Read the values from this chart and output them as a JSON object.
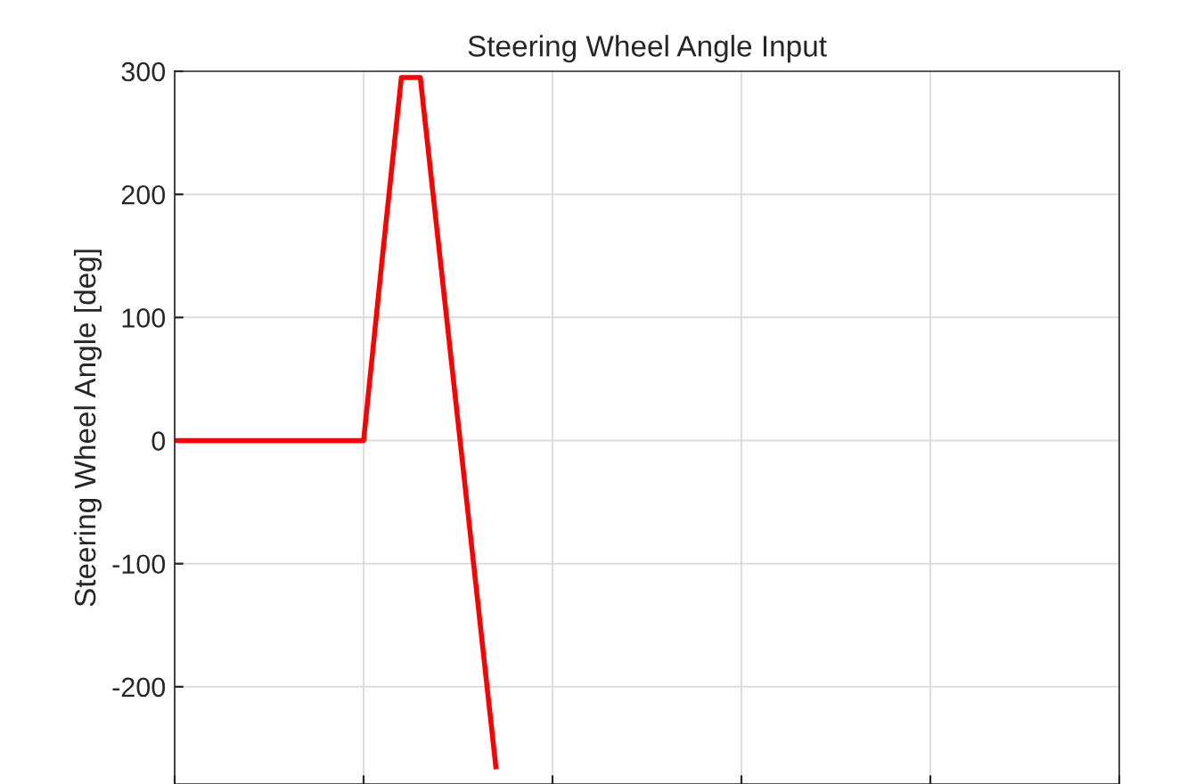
{
  "chart_data": {
    "type": "line",
    "title": "Steering Wheel Angle Input",
    "ylabel": "Steering Wheel Angle [deg]",
    "categories": [
      null,
      null,
      null,
      null,
      null,
      null,
      null,
      null,
      null,
      null,
      null,
      null,
      null,
      null,
      null,
      null,
      null,
      null,
      null,
      null,
      null,
      null,
      null,
      null,
      null,
      null,
      null,
      null,
      null,
      null,
      null,
      null,
      null,
      null,
      null,
      null,
      null,
      null,
      null,
      null,
      null,
      null,
      null,
      null,
      null,
      null,
      null,
      null,
      null,
      null,
      null
    ],
    "series": [
      {
        "color": "#ff0000",
        "values": [
          0,
          0,
          0,
          0,
          0,
          0,
          0,
          0,
          0,
          0,
          0,
          150,
          295,
          295,
          155,
          15,
          -125,
          -265,
          null,
          null,
          null,
          null,
          null,
          null,
          null,
          null,
          null,
          null,
          null,
          null,
          null,
          null,
          null,
          null,
          null,
          null,
          null,
          null,
          null,
          null,
          null,
          null,
          null,
          null,
          null,
          null,
          null,
          null,
          null,
          null,
          null
        ]
      }
    ],
    "ylim": [
      -279,
      300
    ],
    "yticks": [
      -200,
      -100,
      0,
      100,
      200,
      300
    ],
    "grid": true,
    "line_style": "solid",
    "marker": "none"
  }
}
